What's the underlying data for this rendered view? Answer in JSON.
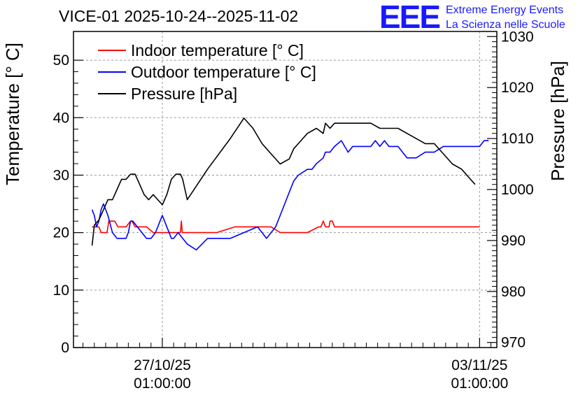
{
  "chart_data": {
    "type": "line",
    "title": "VICE-01 2025-10-24--2025-11-02",
    "ylabel": "Temperature [° C]",
    "y2label": "Pressure [hPa]",
    "ylim": [
      0,
      55
    ],
    "y2lim": [
      969,
      1031
    ],
    "yticks": [
      "0",
      "10",
      "20",
      "30",
      "40",
      "50"
    ],
    "y2ticks": [
      "970",
      "980",
      "990",
      "1000",
      "1010",
      "1020",
      "1030"
    ],
    "xlim_days": [
      -1.96,
      7.38
    ],
    "xticks": [
      {
        "day": 0,
        "date": "27/10/25",
        "time": "01:00:00"
      },
      {
        "day": 7,
        "date": "03/11/25",
        "time": "01:00:00"
      }
    ],
    "legend": {
      "position": "top-left",
      "entries": [
        "Indoor temperature [° C]",
        "Outdoor temperature [° C]",
        "Pressure [hPa]"
      ]
    },
    "logo": {
      "mark": "EEE",
      "line1": "Extreme Energy Events",
      "line2": "La Scienza nelle Scuole"
    },
    "series": [
      {
        "name": "Indoor temperature [° C]",
        "axis": "left",
        "color": "#ff0000",
        "x": [
          -1.55,
          -1.4,
          -1.35,
          -1.22,
          -1.18,
          -1.05,
          -0.98,
          -0.9,
          -0.8,
          -0.7,
          -0.67,
          -0.6,
          -0.5,
          -0.35,
          -0.2,
          0.0,
          0.2,
          0.4,
          0.41,
          0.42,
          0.43,
          0.44,
          0.6,
          0.8,
          1.2,
          1.6,
          2.0,
          2.1,
          2.4,
          2.6,
          2.8,
          3.0,
          3.2,
          3.45,
          3.5,
          3.55,
          3.6,
          3.68,
          3.7,
          3.75,
          3.8,
          4.0,
          4.5,
          5.0,
          5.5,
          6.0,
          6.5,
          7.0
        ],
        "values": [
          21,
          21,
          20,
          20,
          22,
          22,
          21,
          21,
          21,
          22,
          22,
          21,
          21,
          21,
          20,
          20,
          20,
          20,
          21,
          22,
          21,
          20,
          20,
          20,
          20,
          21,
          21,
          21,
          21,
          20,
          20,
          20,
          20,
          21,
          21,
          22,
          21,
          21,
          22,
          22,
          21,
          21,
          21,
          21,
          21,
          21,
          21,
          21
        ]
      },
      {
        "name": "Outdoor temperature [° C]",
        "axis": "left",
        "color": "#0000ff",
        "x": [
          -1.55,
          -1.5,
          -1.45,
          -1.4,
          -1.35,
          -1.3,
          -1.2,
          -1.1,
          -1.0,
          -0.9,
          -0.85,
          -0.8,
          -0.75,
          -0.7,
          -0.65,
          -0.55,
          -0.45,
          -0.35,
          -0.25,
          -0.15,
          -0.1,
          -0.05,
          0.0,
          0.1,
          0.15,
          0.2,
          0.25,
          0.35,
          0.45,
          0.55,
          0.75,
          1.0,
          1.5,
          2.1,
          2.2,
          2.3,
          2.5,
          2.6,
          2.7,
          2.8,
          2.9,
          3.0,
          3.2,
          3.3,
          3.4,
          3.55,
          3.6,
          3.7,
          3.8,
          3.95,
          4.1,
          4.2,
          4.35,
          4.5,
          4.6,
          4.7,
          4.8,
          4.9,
          5.0,
          5.2,
          5.4,
          5.6,
          5.8,
          6.0,
          6.2,
          6.4,
          6.6,
          6.8,
          7.0,
          7.1,
          7.2
        ],
        "values": [
          24,
          23,
          21,
          22,
          24,
          25,
          23,
          20,
          19,
          19,
          19,
          19,
          20,
          22,
          22,
          21,
          20,
          19,
          19,
          20,
          21,
          22,
          23,
          21,
          20,
          19,
          19,
          20,
          19,
          18,
          17,
          19,
          19,
          21,
          20,
          19,
          21,
          23,
          25,
          27,
          29,
          30,
          31,
          31,
          32,
          33,
          34,
          34,
          35,
          36,
          34,
          35,
          35,
          35,
          35,
          36,
          35,
          36,
          35,
          35,
          33,
          33,
          34,
          34,
          35,
          35,
          35,
          35,
          35,
          36,
          36
        ]
      },
      {
        "name": "Pressure [hPa]",
        "axis": "right",
        "color": "#000000",
        "x": [
          -1.55,
          -1.5,
          -1.4,
          -1.3,
          -1.2,
          -1.1,
          -1.0,
          -0.9,
          -0.8,
          -0.7,
          -0.6,
          -0.5,
          -0.4,
          -0.3,
          -0.2,
          -0.1,
          0.0,
          0.1,
          0.2,
          0.3,
          0.4,
          0.45,
          0.5,
          0.55,
          1.0,
          1.5,
          1.8,
          2.0,
          2.2,
          2.4,
          2.6,
          2.8,
          2.9,
          3.0,
          3.2,
          3.4,
          3.55,
          3.6,
          3.7,
          3.8,
          3.9,
          4.0,
          4.2,
          4.4,
          4.6,
          4.8,
          5.0,
          5.2,
          5.4,
          5.6,
          5.8,
          6.0,
          6.2,
          6.4,
          6.6,
          6.8,
          6.9
        ],
        "values": [
          989,
          993,
          994,
          996,
          998,
          998,
          1000,
          1002,
          1002,
          1003,
          1003,
          1001,
          999,
          998,
          999,
          998,
          997,
          999,
          1002,
          1003,
          1003,
          1002,
          1000,
          998,
          1004,
          1010,
          1014,
          1012,
          1009,
          1007,
          1005,
          1006,
          1008,
          1009,
          1011,
          1012,
          1011,
          1013,
          1012,
          1013,
          1013,
          1013,
          1013,
          1013,
          1013,
          1012,
          1012,
          1012,
          1011,
          1010,
          1009,
          1009,
          1007,
          1005,
          1004,
          1002,
          1001
        ]
      }
    ]
  }
}
